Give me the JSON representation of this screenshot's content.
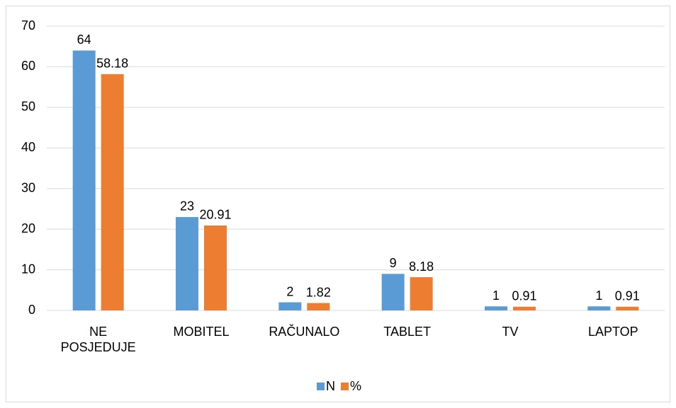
{
  "chart_data": {
    "type": "bar",
    "categories": [
      "NE POSJEDUJE",
      "MOBITEL",
      "RAČUNALO",
      "TABLET",
      "TV",
      "LAPTOP"
    ],
    "series": [
      {
        "name": "N",
        "color": "#5b9bd5",
        "values": [
          64,
          23,
          2,
          9,
          1,
          1
        ]
      },
      {
        "name": "%",
        "color": "#ed7d31",
        "values": [
          58.18,
          20.91,
          1.82,
          8.18,
          0.91,
          0.91
        ]
      }
    ],
    "ylim": [
      0,
      70
    ],
    "yticks": [
      0,
      10,
      20,
      30,
      40,
      50,
      60,
      70
    ],
    "grid": true,
    "legend": "bottom"
  }
}
